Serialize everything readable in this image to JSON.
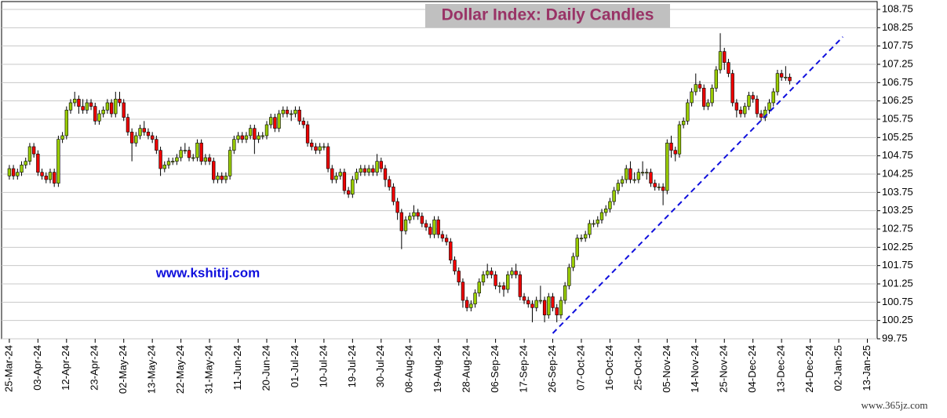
{
  "chart_data": {
    "type": "candlestick",
    "title": "Dollar Index: Daily Candles",
    "annotation": "www.kshitij.com",
    "watermark": "www.365jz.com",
    "up_color": "#99cc00",
    "down_color": "#ee0000",
    "trend_color": "#1010dd",
    "grid": true,
    "ylim": [
      99.75,
      108.75
    ],
    "yticks": [
      99.75,
      100.25,
      100.75,
      101.25,
      101.75,
      102.25,
      102.75,
      103.25,
      103.75,
      104.25,
      104.75,
      105.25,
      105.75,
      106.25,
      106.75,
      107.25,
      107.75,
      108.25,
      108.75
    ],
    "xlim": [
      -1.9,
      212.4
    ],
    "xticks": [
      {
        "value": 0,
        "label": "25-Mar-24"
      },
      {
        "value": 7,
        "label": "03-Apr-24"
      },
      {
        "value": 14,
        "label": "12-Apr-24"
      },
      {
        "value": 21,
        "label": "23-Apr-24"
      },
      {
        "value": 28,
        "label": "02-May-24"
      },
      {
        "value": 35,
        "label": "13-May-24"
      },
      {
        "value": 42,
        "label": "22-May-24"
      },
      {
        "value": 49,
        "label": "31-May-24"
      },
      {
        "value": 56,
        "label": "11-Jun-24"
      },
      {
        "value": 63,
        "label": "20-Jun-24"
      },
      {
        "value": 70,
        "label": "01-Jul-24"
      },
      {
        "value": 77,
        "label": "10-Jul-24"
      },
      {
        "value": 84,
        "label": "19-Jul-24"
      },
      {
        "value": 91,
        "label": "30-Jul-24"
      },
      {
        "value": 98,
        "label": "08-Aug-24"
      },
      {
        "value": 105,
        "label": "19-Aug-24"
      },
      {
        "value": 112,
        "label": "28-Aug-24"
      },
      {
        "value": 119,
        "label": "06-Sep-24"
      },
      {
        "value": 126,
        "label": "17-Sep-24"
      },
      {
        "value": 133,
        "label": "26-Sep-24"
      },
      {
        "value": 140,
        "label": "07-Oct-24"
      },
      {
        "value": 147,
        "label": "16-Oct-24"
      },
      {
        "value": 154,
        "label": "25-Oct-24"
      },
      {
        "value": 161,
        "label": "05-Nov-24"
      },
      {
        "value": 168,
        "label": "14-Nov-24"
      },
      {
        "value": 175,
        "label": "25-Nov-24"
      },
      {
        "value": 182,
        "label": "04-Dec-24"
      },
      {
        "value": 189,
        "label": "13-Dec-24"
      },
      {
        "value": 196,
        "label": "24-Dec-24"
      },
      {
        "value": 203,
        "label": "02-Jan-25"
      },
      {
        "value": 210,
        "label": "13-Jan-25"
      }
    ],
    "trendline": {
      "x": [
        133,
        204
      ],
      "y": [
        99.9,
        108.0
      ]
    },
    "candles": [
      [
        104.2,
        104.5,
        104.1,
        104.4
      ],
      [
        104.4,
        104.5,
        104.1,
        104.2
      ],
      [
        104.2,
        104.4,
        104.1,
        104.3
      ],
      [
        104.3,
        104.6,
        104.2,
        104.5
      ],
      [
        104.5,
        104.7,
        104.4,
        104.6
      ],
      [
        104.6,
        105.1,
        104.5,
        105.0
      ],
      [
        105.0,
        105.1,
        104.7,
        104.8
      ],
      [
        104.8,
        104.9,
        104.2,
        104.3
      ],
      [
        104.3,
        104.4,
        104.1,
        104.2
      ],
      [
        104.2,
        104.3,
        104.0,
        104.1
      ],
      [
        104.1,
        104.4,
        104.0,
        104.3
      ],
      [
        104.3,
        104.4,
        103.9,
        104.0
      ],
      [
        104.0,
        105.3,
        103.9,
        105.2
      ],
      [
        105.2,
        105.4,
        105.1,
        105.3
      ],
      [
        105.3,
        106.1,
        105.2,
        106.0
      ],
      [
        106.0,
        106.3,
        105.9,
        106.2
      ],
      [
        106.2,
        106.5,
        106.1,
        106.3
      ],
      [
        106.3,
        106.4,
        105.9,
        106.1
      ],
      [
        106.1,
        106.3,
        105.9,
        106.0
      ],
      [
        106.0,
        106.3,
        105.9,
        106.2
      ],
      [
        106.2,
        106.3,
        106.0,
        106.1
      ],
      [
        106.1,
        106.2,
        105.6,
        105.7
      ],
      [
        105.7,
        106.0,
        105.6,
        105.9
      ],
      [
        105.9,
        106.1,
        105.8,
        106.0
      ],
      [
        106.0,
        106.3,
        105.9,
        106.2
      ],
      [
        106.2,
        106.3,
        105.8,
        105.9
      ],
      [
        105.9,
        106.5,
        105.8,
        106.3
      ],
      [
        106.3,
        106.5,
        106.1,
        106.2
      ],
      [
        106.2,
        106.3,
        105.7,
        105.8
      ],
      [
        105.8,
        105.9,
        105.3,
        105.4
      ],
      [
        105.4,
        105.5,
        104.6,
        105.1
      ],
      [
        105.1,
        105.4,
        105.0,
        105.3
      ],
      [
        105.3,
        105.6,
        105.2,
        105.5
      ],
      [
        105.5,
        105.7,
        105.3,
        105.4
      ],
      [
        105.4,
        105.5,
        105.2,
        105.3
      ],
      [
        105.3,
        105.4,
        105.1,
        105.2
      ],
      [
        105.2,
        105.3,
        104.8,
        104.9
      ],
      [
        104.9,
        105.0,
        104.2,
        104.4
      ],
      [
        104.4,
        104.6,
        104.3,
        104.5
      ],
      [
        104.5,
        104.7,
        104.4,
        104.6
      ],
      [
        104.6,
        104.7,
        104.5,
        104.6
      ],
      [
        104.6,
        104.8,
        104.5,
        104.7
      ],
      [
        104.7,
        105.0,
        104.6,
        104.9
      ],
      [
        104.9,
        105.1,
        104.8,
        104.9
      ],
      [
        104.9,
        105.0,
        104.6,
        104.7
      ],
      [
        104.7,
        104.8,
        104.6,
        104.7
      ],
      [
        104.7,
        105.2,
        104.6,
        105.1
      ],
      [
        105.1,
        105.2,
        104.5,
        104.6
      ],
      [
        104.6,
        104.8,
        104.5,
        104.7
      ],
      [
        104.7,
        104.8,
        104.5,
        104.6
      ],
      [
        104.6,
        104.7,
        104.0,
        104.1
      ],
      [
        104.1,
        104.3,
        104.0,
        104.2
      ],
      [
        104.2,
        104.3,
        104.0,
        104.1
      ],
      [
        104.1,
        104.3,
        104.0,
        104.2
      ],
      [
        104.2,
        105.0,
        104.1,
        104.9
      ],
      [
        104.9,
        105.3,
        104.8,
        105.2
      ],
      [
        105.2,
        105.4,
        105.1,
        105.3
      ],
      [
        105.3,
        105.4,
        105.1,
        105.2
      ],
      [
        105.2,
        105.4,
        105.1,
        105.3
      ],
      [
        105.3,
        105.6,
        105.2,
        105.5
      ],
      [
        105.5,
        105.6,
        104.8,
        105.2
      ],
      [
        105.2,
        105.4,
        105.1,
        105.3
      ],
      [
        105.3,
        105.4,
        105.2,
        105.3
      ],
      [
        105.3,
        105.7,
        105.2,
        105.6
      ],
      [
        105.6,
        105.9,
        105.5,
        105.8
      ],
      [
        105.8,
        105.9,
        105.4,
        105.5
      ],
      [
        105.5,
        106.0,
        105.4,
        105.9
      ],
      [
        105.9,
        106.1,
        105.8,
        106.0
      ],
      [
        106.0,
        106.1,
        105.8,
        105.9
      ],
      [
        105.9,
        106.0,
        105.7,
        105.9
      ],
      [
        105.9,
        106.1,
        105.8,
        106.0
      ],
      [
        106.0,
        106.1,
        105.6,
        105.7
      ],
      [
        105.7,
        105.8,
        105.5,
        105.6
      ],
      [
        105.6,
        105.7,
        105.0,
        105.1
      ],
      [
        105.1,
        105.2,
        104.9,
        105.0
      ],
      [
        105.0,
        105.1,
        104.8,
        104.9
      ],
      [
        104.9,
        105.1,
        104.8,
        105.0
      ],
      [
        105.0,
        105.1,
        104.9,
        105.0
      ],
      [
        105.0,
        105.1,
        104.3,
        104.4
      ],
      [
        104.4,
        104.5,
        104.0,
        104.1
      ],
      [
        104.1,
        104.3,
        104.0,
        104.2
      ],
      [
        104.2,
        104.4,
        104.1,
        104.3
      ],
      [
        104.3,
        104.4,
        103.7,
        103.8
      ],
      [
        103.8,
        103.9,
        103.6,
        103.7
      ],
      [
        103.7,
        104.2,
        103.6,
        104.1
      ],
      [
        104.1,
        104.4,
        104.0,
        104.3
      ],
      [
        104.3,
        104.5,
        104.2,
        104.4
      ],
      [
        104.4,
        104.5,
        104.2,
        104.3
      ],
      [
        104.3,
        104.5,
        104.2,
        104.4
      ],
      [
        104.4,
        104.5,
        104.2,
        104.3
      ],
      [
        104.3,
        104.8,
        104.2,
        104.6
      ],
      [
        104.6,
        104.7,
        104.3,
        104.4
      ],
      [
        104.4,
        104.5,
        103.9,
        104.1
      ],
      [
        104.1,
        104.2,
        103.8,
        103.9
      ],
      [
        103.9,
        104.0,
        103.4,
        103.5
      ],
      [
        103.5,
        103.6,
        103.0,
        103.2
      ],
      [
        103.2,
        103.3,
        102.2,
        102.7
      ],
      [
        102.7,
        103.1,
        102.6,
        103.0
      ],
      [
        103.0,
        103.2,
        102.9,
        103.1
      ],
      [
        103.1,
        103.4,
        103.0,
        103.2
      ],
      [
        103.2,
        103.3,
        103.0,
        103.1
      ],
      [
        103.1,
        103.2,
        102.8,
        102.9
      ],
      [
        102.9,
        103.0,
        102.7,
        102.8
      ],
      [
        102.8,
        102.9,
        102.5,
        102.6
      ],
      [
        102.6,
        103.1,
        102.5,
        103.0
      ],
      [
        103.0,
        103.1,
        102.5,
        102.6
      ],
      [
        102.6,
        102.7,
        102.4,
        102.5
      ],
      [
        102.5,
        102.6,
        102.3,
        102.4
      ],
      [
        102.4,
        102.5,
        101.8,
        101.9
      ],
      [
        101.9,
        102.0,
        101.5,
        101.6
      ],
      [
        101.6,
        101.7,
        101.2,
        101.3
      ],
      [
        101.3,
        101.4,
        100.6,
        100.8
      ],
      [
        100.8,
        100.9,
        100.5,
        100.6
      ],
      [
        100.6,
        100.8,
        100.5,
        100.7
      ],
      [
        100.7,
        101.1,
        100.6,
        101.0
      ],
      [
        101.0,
        101.4,
        100.9,
        101.3
      ],
      [
        101.3,
        101.6,
        101.2,
        101.5
      ],
      [
        101.5,
        101.8,
        101.4,
        101.6
      ],
      [
        101.6,
        101.7,
        101.4,
        101.5
      ],
      [
        101.5,
        101.6,
        101.1,
        101.2
      ],
      [
        101.2,
        101.3,
        101.0,
        101.2
      ],
      [
        101.2,
        101.3,
        100.9,
        101.1
      ],
      [
        101.1,
        101.6,
        101.0,
        101.5
      ],
      [
        101.5,
        101.7,
        101.4,
        101.6
      ],
      [
        101.6,
        101.8,
        101.4,
        101.5
      ],
      [
        101.5,
        101.6,
        100.8,
        100.9
      ],
      [
        100.9,
        101.0,
        100.7,
        100.8
      ],
      [
        100.8,
        100.9,
        100.6,
        100.7
      ],
      [
        100.7,
        100.8,
        100.2,
        100.6
      ],
      [
        100.6,
        100.9,
        100.5,
        100.8
      ],
      [
        100.8,
        101.2,
        100.7,
        100.8
      ],
      [
        100.8,
        100.9,
        100.2,
        100.4
      ],
      [
        100.4,
        101.0,
        100.3,
        100.9
      ],
      [
        100.9,
        101.0,
        100.5,
        100.6
      ],
      [
        100.6,
        100.7,
        100.2,
        100.4
      ],
      [
        100.4,
        100.9,
        100.3,
        100.8
      ],
      [
        100.8,
        101.3,
        100.7,
        101.2
      ],
      [
        101.2,
        101.8,
        101.1,
        101.7
      ],
      [
        101.7,
        102.1,
        101.6,
        102.0
      ],
      [
        102.0,
        102.6,
        101.9,
        102.5
      ],
      [
        102.5,
        102.6,
        102.4,
        102.5
      ],
      [
        102.5,
        102.7,
        102.4,
        102.6
      ],
      [
        102.6,
        103.0,
        102.5,
        102.9
      ],
      [
        102.9,
        103.0,
        102.8,
        102.9
      ],
      [
        102.9,
        103.1,
        102.8,
        103.0
      ],
      [
        103.0,
        103.3,
        102.9,
        103.2
      ],
      [
        103.2,
        103.4,
        103.1,
        103.3
      ],
      [
        103.3,
        103.6,
        103.2,
        103.5
      ],
      [
        103.5,
        103.9,
        103.4,
        103.8
      ],
      [
        103.8,
        104.1,
        103.7,
        104.0
      ],
      [
        104.0,
        104.2,
        103.9,
        104.1
      ],
      [
        104.1,
        104.5,
        104.0,
        104.4
      ],
      [
        104.4,
        104.6,
        104.0,
        104.1
      ],
      [
        104.1,
        104.3,
        104.0,
        104.1
      ],
      [
        104.1,
        104.4,
        104.0,
        104.3
      ],
      [
        104.3,
        104.6,
        104.2,
        104.3
      ],
      [
        104.3,
        104.4,
        104.1,
        104.3
      ],
      [
        104.3,
        104.4,
        103.9,
        104.0
      ],
      [
        104.0,
        104.1,
        103.8,
        103.9
      ],
      [
        103.9,
        104.0,
        103.8,
        103.9
      ],
      [
        103.9,
        104.0,
        103.4,
        103.8
      ],
      [
        103.8,
        105.2,
        103.7,
        105.1
      ],
      [
        105.1,
        105.3,
        104.7,
        104.9
      ],
      [
        104.9,
        105.0,
        104.6,
        104.8
      ],
      [
        104.8,
        105.7,
        104.7,
        105.6
      ],
      [
        105.6,
        105.8,
        105.5,
        105.7
      ],
      [
        105.7,
        106.3,
        105.6,
        106.2
      ],
      [
        106.2,
        106.6,
        106.1,
        106.5
      ],
      [
        106.5,
        107.0,
        106.4,
        106.7
      ],
      [
        106.7,
        106.8,
        106.5,
        106.6
      ],
      [
        106.6,
        106.7,
        106.0,
        106.1
      ],
      [
        106.1,
        106.3,
        106.0,
        106.2
      ],
      [
        106.2,
        106.7,
        106.1,
        106.6
      ],
      [
        106.6,
        107.2,
        106.5,
        107.1
      ],
      [
        107.1,
        108.1,
        107.0,
        107.6
      ],
      [
        107.6,
        107.7,
        107.1,
        107.3
      ],
      [
        107.3,
        107.4,
        106.9,
        107.0
      ],
      [
        107.0,
        107.1,
        106.1,
        106.2
      ],
      [
        106.2,
        106.3,
        105.8,
        106.0
      ],
      [
        106.0,
        106.1,
        105.8,
        105.9
      ],
      [
        105.9,
        106.2,
        105.8,
        106.1
      ],
      [
        106.1,
        106.5,
        106.0,
        106.4
      ],
      [
        106.4,
        106.5,
        106.2,
        106.3
      ],
      [
        106.3,
        106.4,
        105.8,
        105.9
      ],
      [
        105.9,
        106.0,
        105.7,
        105.8
      ],
      [
        105.8,
        106.1,
        105.7,
        106.0
      ],
      [
        106.0,
        106.3,
        105.9,
        106.2
      ],
      [
        106.2,
        106.6,
        106.1,
        106.5
      ],
      [
        106.5,
        107.1,
        106.4,
        107.0
      ],
      [
        107.0,
        107.1,
        106.8,
        106.9
      ],
      [
        106.9,
        107.2,
        106.8,
        106.9
      ],
      [
        106.9,
        107.0,
        106.7,
        106.8
      ]
    ]
  }
}
